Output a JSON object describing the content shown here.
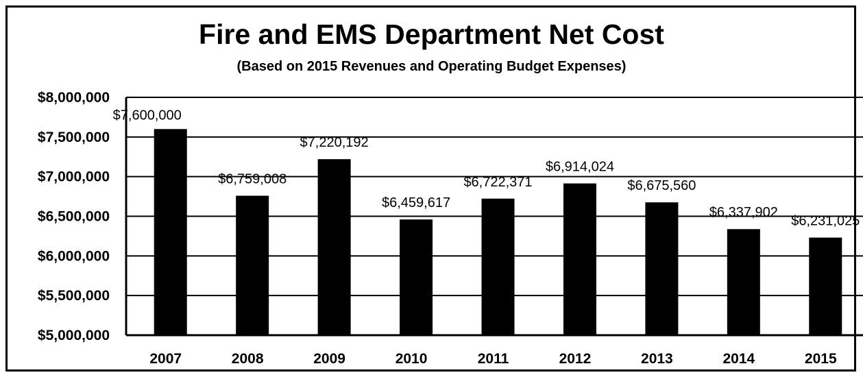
{
  "chart_data": {
    "type": "bar",
    "title": "Fire and EMS Department Net Cost",
    "subtitle": "(Based on 2015 Revenues and Operating Budget Expenses)",
    "xlabel": "",
    "ylabel": "",
    "categories": [
      "2007",
      "2008",
      "2009",
      "2010",
      "2011",
      "2012",
      "2013",
      "2014",
      "2015"
    ],
    "values": [
      7600000,
      6759008,
      7220192,
      6459617,
      6722371,
      6914024,
      6675560,
      6337902,
      6231025
    ],
    "data_labels": [
      "$7,600,000",
      "$6,759,008",
      "$7,220,192",
      "$6,459,617",
      "$6,722,371",
      "$6,914,024",
      "$6,675,560",
      "$6,337,902",
      "$6,231,025"
    ],
    "ylim": [
      5000000,
      8000000
    ],
    "yticks": [
      5000000,
      5500000,
      6000000,
      6500000,
      7000000,
      7500000,
      8000000
    ],
    "ytick_labels": [
      "$5,000,000",
      "$5,500,000",
      "$6,000,000",
      "$6,500,000",
      "$7,000,000",
      "$7,500,000",
      "$8,000,000"
    ],
    "grid": true,
    "legend": "none",
    "bar_color": "#000000",
    "grid_color": "#000000"
  }
}
